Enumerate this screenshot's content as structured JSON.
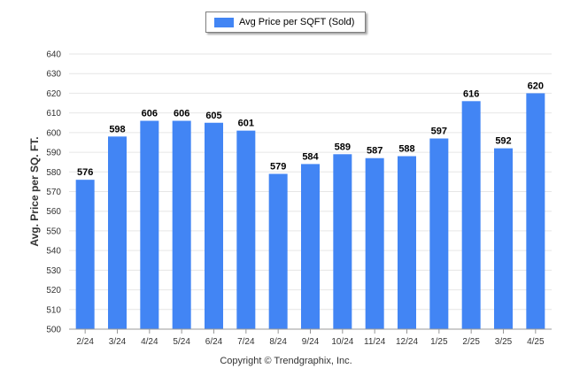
{
  "chart_data": {
    "type": "bar",
    "ylabel": "Avg. Price per SQ. FT.",
    "ylim": [
      500,
      640
    ],
    "yticks": [
      500,
      510,
      520,
      530,
      540,
      550,
      560,
      570,
      580,
      590,
      600,
      610,
      620,
      630,
      640
    ],
    "grid": true,
    "legend_position": "top-center",
    "categories": [
      "2/24",
      "3/24",
      "4/24",
      "5/24",
      "6/24",
      "7/24",
      "8/24",
      "9/24",
      "10/24",
      "11/24",
      "12/24",
      "1/25",
      "2/25",
      "3/25",
      "4/25"
    ],
    "series": [
      {
        "name": "Avg Price per SQFT (Sold)",
        "color": "#4285f4",
        "values": [
          576,
          598,
          606,
          606,
          605,
          601,
          579,
          584,
          589,
          587,
          588,
          597,
          616,
          592,
          620
        ]
      }
    ]
  },
  "footer": {
    "copyright": "Copyright © Trendgraphix, Inc."
  }
}
